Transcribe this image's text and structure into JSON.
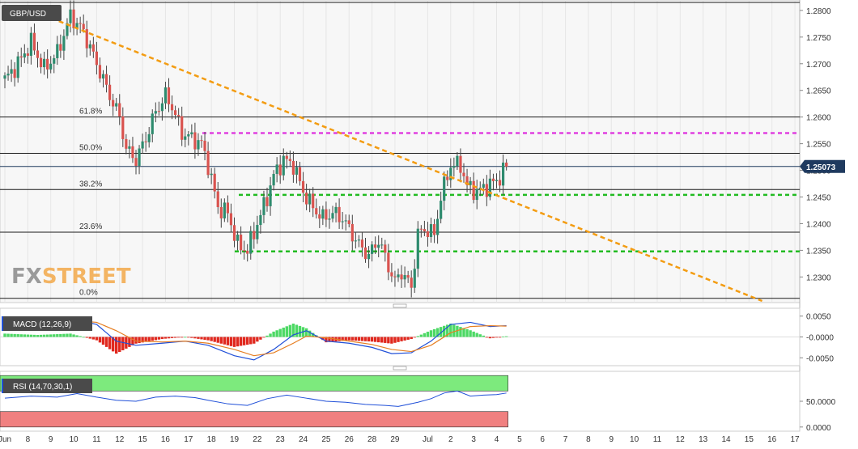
{
  "symbol": "GBP/USD",
  "logo": {
    "fx": "FX",
    "street": "STREET"
  },
  "chart_data": [
    {
      "type": "candlestick",
      "title": "GBP/USD",
      "ylim": [
        1.2255,
        1.2815
      ],
      "y_ticks": [
        "1.2800",
        "1.2750",
        "1.2700",
        "1.2650",
        "1.2600",
        "1.2550",
        "1.2500",
        "1.2450",
        "1.2400",
        "1.2350",
        "1.2300"
      ],
      "current_price": "1.25073",
      "fib_levels": [
        {
          "label": "61.8%",
          "value": 1.26
        },
        {
          "label": "50.0%",
          "value": 1.2532
        },
        {
          "label": "38.2%",
          "value": 1.2464
        },
        {
          "label": "23.6%",
          "value": 1.2384
        },
        {
          "label": "0.0%",
          "value": 1.226
        }
      ],
      "hlines_dotted": [
        {
          "value": 1.257,
          "color": "#e040e0"
        },
        {
          "value": 1.2454,
          "color": "#22bb22"
        },
        {
          "value": 1.2348,
          "color": "#22bb22"
        }
      ],
      "trendline": {
        "color": "#f39c12",
        "from": {
          "slot": 5,
          "value": 1.2808
        },
        "to": {
          "slot": 231,
          "value": 1.2255
        }
      },
      "x_labels": [
        {
          "label": "Jun",
          "slot": 0
        },
        {
          "label": "8",
          "slot": 7
        },
        {
          "label": "9",
          "slot": 14
        },
        {
          "label": "10",
          "slot": 21
        },
        {
          "label": "11",
          "slot": 28
        },
        {
          "label": "12",
          "slot": 35
        },
        {
          "label": "15",
          "slot": 42
        },
        {
          "label": "16",
          "slot": 49
        },
        {
          "label": "17",
          "slot": 56
        },
        {
          "label": "18",
          "slot": 63
        },
        {
          "label": "19",
          "slot": 70
        },
        {
          "label": "22",
          "slot": 77
        },
        {
          "label": "23",
          "slot": 84
        },
        {
          "label": "24",
          "slot": 91
        },
        {
          "label": "25",
          "slot": 98
        },
        {
          "label": "26",
          "slot": 105
        },
        {
          "label": "28",
          "slot": 112
        },
        {
          "label": "29",
          "slot": 119
        },
        {
          "label": "Jul",
          "slot": 129
        },
        {
          "label": "2",
          "slot": 136
        },
        {
          "label": "3",
          "slot": 143
        },
        {
          "label": "4",
          "slot": 150
        },
        {
          "label": "5",
          "slot": 157
        },
        {
          "label": "6",
          "slot": 164
        },
        {
          "label": "7",
          "slot": 171
        },
        {
          "label": "8",
          "slot": 178
        },
        {
          "label": "9",
          "slot": 185
        },
        {
          "label": "10",
          "slot": 192
        },
        {
          "label": "11",
          "slot": 199
        },
        {
          "label": "12",
          "slot": 206
        },
        {
          "label": "13",
          "slot": 213
        },
        {
          "label": "14",
          "slot": 220
        },
        {
          "label": "15",
          "slot": 227
        },
        {
          "label": "16",
          "slot": 234
        },
        {
          "label": "17",
          "slot": 241
        }
      ],
      "close_path": [
        [
          0,
          1.267
        ],
        [
          4,
          1.27
        ],
        [
          8,
          1.274
        ],
        [
          12,
          1.269
        ],
        [
          16,
          1.272
        ],
        [
          20,
          1.279
        ],
        [
          24,
          1.276
        ],
        [
          28,
          1.27
        ],
        [
          32,
          1.264
        ],
        [
          35,
          1.26
        ],
        [
          37,
          1.254
        ],
        [
          40,
          1.252
        ],
        [
          43,
          1.256
        ],
        [
          46,
          1.261
        ],
        [
          49,
          1.264
        ],
        [
          51,
          1.262
        ],
        [
          54,
          1.257
        ],
        [
          57,
          1.256
        ],
        [
          60,
          1.255
        ],
        [
          62,
          1.251
        ],
        [
          65,
          1.243
        ],
        [
          68,
          1.242
        ],
        [
          71,
          1.236
        ],
        [
          74,
          1.235
        ],
        [
          77,
          1.24
        ],
        [
          80,
          1.245
        ],
        [
          82,
          1.249
        ],
        [
          85,
          1.252
        ],
        [
          88,
          1.251
        ],
        [
          91,
          1.246
        ],
        [
          94,
          1.243
        ],
        [
          97,
          1.241
        ],
        [
          100,
          1.242
        ],
        [
          103,
          1.241
        ],
        [
          106,
          1.238
        ],
        [
          108,
          1.236
        ],
        [
          111,
          1.234
        ],
        [
          114,
          1.237
        ],
        [
          117,
          1.232
        ],
        [
          119,
          1.229
        ],
        [
          121,
          1.231
        ],
        [
          124,
          1.228
        ],
        [
          126,
          1.238
        ],
        [
          128,
          1.239
        ],
        [
          131,
          1.238
        ],
        [
          133,
          1.245
        ],
        [
          136,
          1.251
        ],
        [
          139,
          1.251
        ],
        [
          141,
          1.247
        ],
        [
          144,
          1.246
        ],
        [
          147,
          1.247
        ],
        [
          150,
          1.248
        ],
        [
          153,
          1.2507
        ]
      ]
    },
    {
      "type": "line",
      "title": "MACD (12,26,9)",
      "ylim": [
        -0.0065,
        0.0065
      ],
      "y_ticks": [
        "0.0050",
        "-0.0000",
        "-0.0050"
      ],
      "series": [
        {
          "name": "MACD",
          "color": "#1f4fd8",
          "points": [
            [
              0,
              0.0035
            ],
            [
              10,
              0.0038
            ],
            [
              20,
              0.0045
            ],
            [
              28,
              0.003
            ],
            [
              34,
              -0.001
            ],
            [
              40,
              -0.002
            ],
            [
              48,
              -0.0015
            ],
            [
              55,
              -0.001
            ],
            [
              62,
              -0.002
            ],
            [
              70,
              -0.0045
            ],
            [
              76,
              -0.0055
            ],
            [
              82,
              -0.003
            ],
            [
              88,
              0.0005
            ],
            [
              92,
              0.0015
            ],
            [
              98,
              -0.001
            ],
            [
              105,
              -0.0015
            ],
            [
              112,
              -0.0025
            ],
            [
              118,
              -0.004
            ],
            [
              124,
              -0.0038
            ],
            [
              130,
              -0.001
            ],
            [
              136,
              0.003
            ],
            [
              142,
              0.0035
            ],
            [
              148,
              0.0025
            ],
            [
              153,
              0.0027
            ]
          ]
        },
        {
          "name": "Signal",
          "color": "#e67e22",
          "points": [
            [
              0,
              0.003
            ],
            [
              10,
              0.0035
            ],
            [
              20,
              0.004
            ],
            [
              28,
              0.0035
            ],
            [
              34,
              0.0015
            ],
            [
              40,
              -0.001
            ],
            [
              48,
              -0.0012
            ],
            [
              55,
              -0.001
            ],
            [
              62,
              -0.0015
            ],
            [
              70,
              -0.003
            ],
            [
              76,
              -0.0045
            ],
            [
              82,
              -0.0038
            ],
            [
              88,
              -0.0015
            ],
            [
              92,
              0.0002
            ],
            [
              98,
              -0.0002
            ],
            [
              105,
              -0.001
            ],
            [
              112,
              -0.0018
            ],
            [
              118,
              -0.003
            ],
            [
              124,
              -0.0035
            ],
            [
              130,
              -0.002
            ],
            [
              136,
              0.001
            ],
            [
              142,
              0.0025
            ],
            [
              148,
              0.0027
            ],
            [
              153,
              0.0026
            ]
          ]
        }
      ]
    },
    {
      "type": "line",
      "title": "RSI (14,70,30,1)",
      "ylim": [
        -5,
        105
      ],
      "y_ticks": [
        "50.0000",
        "0.0000"
      ],
      "bands": [
        {
          "from": 70,
          "to": 100,
          "color": "#7dea7d"
        },
        {
          "from": 0,
          "to": 30,
          "color": "#f08080"
        }
      ],
      "series": [
        {
          "name": "RSI",
          "color": "#1f4fd8",
          "points": [
            [
              0,
              56
            ],
            [
              8,
              60
            ],
            [
              16,
              58
            ],
            [
              22,
              65
            ],
            [
              28,
              58
            ],
            [
              34,
              52
            ],
            [
              40,
              50
            ],
            [
              46,
              58
            ],
            [
              52,
              60
            ],
            [
              58,
              57
            ],
            [
              62,
              52
            ],
            [
              68,
              45
            ],
            [
              74,
              42
            ],
            [
              80,
              55
            ],
            [
              86,
              62
            ],
            [
              92,
              56
            ],
            [
              98,
              50
            ],
            [
              104,
              48
            ],
            [
              110,
              44
            ],
            [
              116,
              42
            ],
            [
              120,
              40
            ],
            [
              126,
              48
            ],
            [
              130,
              55
            ],
            [
              134,
              66
            ],
            [
              138,
              70
            ],
            [
              142,
              60
            ],
            [
              146,
              62
            ],
            [
              150,
              63
            ],
            [
              153,
              66
            ]
          ]
        }
      ]
    }
  ]
}
